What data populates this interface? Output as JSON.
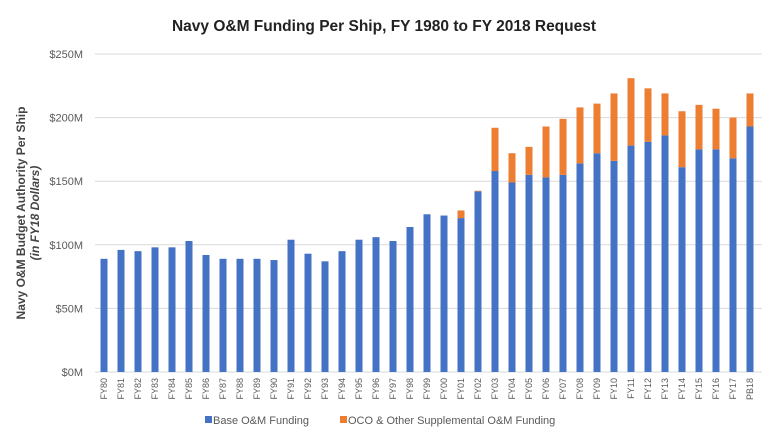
{
  "chart_data": {
    "type": "bar",
    "stacked": true,
    "title": "Navy O&M Funding Per Ship, FY 1980 to FY 2018 Request",
    "ylabel": "Navy O&M Budget Authority Per Ship",
    "ylabel_sub": "(in FY18 Dollars)",
    "xlabel": "",
    "ylim": [
      0,
      250
    ],
    "yticks": [
      0,
      50,
      100,
      150,
      200,
      250
    ],
    "ytick_labels": [
      "$0M",
      "$50M",
      "$100M",
      "$150M",
      "$200M",
      "$250M"
    ],
    "grid": true,
    "legend_position": "bottom",
    "categories": [
      "FY80",
      "FY81",
      "FY82",
      "FY83",
      "FY84",
      "FY85",
      "FY86",
      "FY87",
      "FY88",
      "FY89",
      "FY90",
      "FY91",
      "FY92",
      "FY93",
      "FY94",
      "FY95",
      "FY96",
      "FY97",
      "FY98",
      "FY99",
      "FY00",
      "FY01",
      "FY02",
      "FY03",
      "FY04",
      "FY05",
      "FY06",
      "FY07",
      "FY08",
      "FY09",
      "FY10",
      "FY11",
      "FY12",
      "FY13",
      "FY14",
      "FY15",
      "FY16",
      "FY17",
      "PB18"
    ],
    "series": [
      {
        "name": "Base O&M Funding",
        "color": "#4472C4",
        "values": [
          89,
          96,
          95,
          98,
          98,
          103,
          92,
          89,
          89,
          89,
          88,
          104,
          93,
          87,
          95,
          104,
          106,
          103,
          114,
          124,
          123,
          121,
          142,
          158,
          149,
          155,
          153,
          155,
          164,
          172,
          166,
          178,
          181,
          186,
          161,
          175,
          175,
          168,
          193
        ]
      },
      {
        "name": "OCO & Other Supplemental O&M Funding",
        "color": "#ED7D31",
        "values": [
          0,
          0,
          0,
          0,
          0,
          0,
          0,
          0,
          0,
          0,
          0,
          0,
          0,
          0,
          0,
          0,
          0,
          0,
          0,
          0,
          0,
          6,
          0.5,
          34,
          23,
          22,
          40,
          44,
          44,
          39,
          53,
          53,
          42,
          33,
          44,
          35,
          32,
          32,
          26
        ]
      }
    ]
  }
}
